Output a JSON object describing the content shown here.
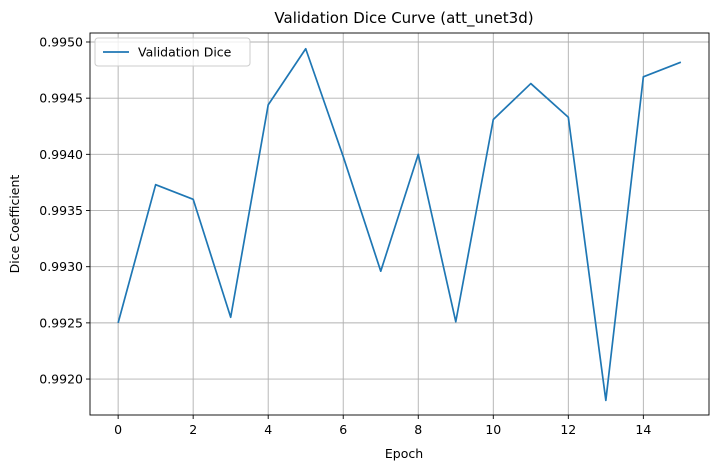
{
  "chart_data": {
    "type": "line",
    "title": "Validation Dice Curve (att_unet3d)",
    "xlabel": "Epoch",
    "ylabel": "Dice Coefficient",
    "xlim": [
      -0.75,
      15.75
    ],
    "ylim": [
      0.99168,
      0.99508
    ],
    "xticks": [
      0,
      2,
      4,
      6,
      8,
      10,
      12,
      14
    ],
    "yticks": [
      0.992,
      0.9925,
      0.993,
      0.9935,
      0.994,
      0.9945,
      0.995
    ],
    "grid": true,
    "legend_position": "upper-left",
    "series": [
      {
        "name": "Validation Dice",
        "color": "#1f77b4",
        "x": [
          0,
          1,
          2,
          3,
          4,
          5,
          6,
          7,
          8,
          9,
          10,
          11,
          12,
          13,
          14,
          15
        ],
        "values": [
          0.9925,
          0.99373,
          0.9936,
          0.99255,
          0.99444,
          0.99494,
          0.99398,
          0.99296,
          0.994,
          0.99251,
          0.99431,
          0.99463,
          0.99433,
          0.99181,
          0.99469,
          0.99482
        ]
      }
    ]
  }
}
